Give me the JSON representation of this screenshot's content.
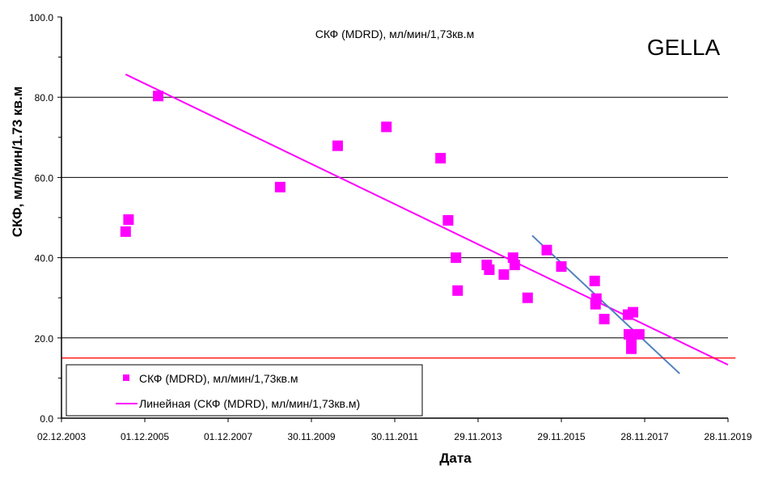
{
  "chart_data": {
    "type": "scatter",
    "title": "СКФ (MDRD), мл/мин/1,73кв.м",
    "annotation": "GELLA",
    "xlabel": "Дата",
    "ylabel": "СКФ, мл/мин/1.73 кв.м",
    "ylim": [
      0,
      100
    ],
    "xlim": [
      2003.92,
      2019.92
    ],
    "yticks": [
      0,
      20,
      40,
      60,
      80,
      100
    ],
    "ytick_labels": [
      "0.0",
      "20.0",
      "40.0",
      "60.0",
      "80.0",
      "100.0"
    ],
    "xticks": [
      2003.92,
      2005.92,
      2007.92,
      2009.92,
      2011.92,
      2013.92,
      2015.92,
      2017.92,
      2019.92
    ],
    "xtick_labels": [
      "02.12.2003",
      "01.12.2005",
      "01.12.2007",
      "30.11.2009",
      "30.11.2011",
      "29.11.2013",
      "29.11.2015",
      "28.11.2017",
      "28.11.2019"
    ],
    "grid": "horizontal",
    "legend_position": "bottom-left",
    "legend": [
      "СКФ (MDRD), мл/мин/1,73кв.м",
      "Линейная (СКФ (MDRD), мл/мин/1,73кв.м)"
    ],
    "series": [
      {
        "name": "СКФ (MDRD), мл/мин/1,73кв.м",
        "color": "#ff00ff",
        "x": [
          2005.46,
          2005.53,
          2006.24,
          2009.17,
          2010.55,
          2011.72,
          2013.02,
          2013.2,
          2013.39,
          2013.43,
          2014.13,
          2014.19,
          2014.54,
          2014.76,
          2014.8,
          2015.11,
          2015.57,
          2015.92,
          2016.72,
          2016.76,
          2016.74,
          2016.95,
          2017.52,
          2017.64,
          2017.54,
          2017.6,
          2017.6,
          2017.79
        ],
        "y": [
          46.5,
          49.5,
          80.3,
          57.6,
          67.9,
          72.6,
          64.8,
          49.3,
          40.0,
          31.8,
          38.2,
          37.0,
          35.8,
          40.0,
          38.2,
          30.0,
          41.9,
          37.8,
          34.2,
          29.8,
          28.4,
          24.7,
          25.8,
          26.4,
          20.9,
          18.7,
          17.3,
          20.9
        ]
      }
    ],
    "lines": [
      {
        "name": "Линейная (СКФ (MDRD), мл/мин/1,73кв.м)",
        "color": "#ff00ff",
        "x": [
          2005.46,
          2019.92
        ],
        "y": [
          85.7,
          13.3
        ]
      },
      {
        "name": "recent-trend",
        "color": "#4f81bd",
        "x": [
          2015.22,
          2018.76
        ],
        "y": [
          45.5,
          11.1
        ]
      },
      {
        "name": "threshold",
        "color": "#ff0000",
        "x": [
          2003.92,
          2020.1
        ],
        "y": [
          15,
          15
        ]
      }
    ]
  }
}
